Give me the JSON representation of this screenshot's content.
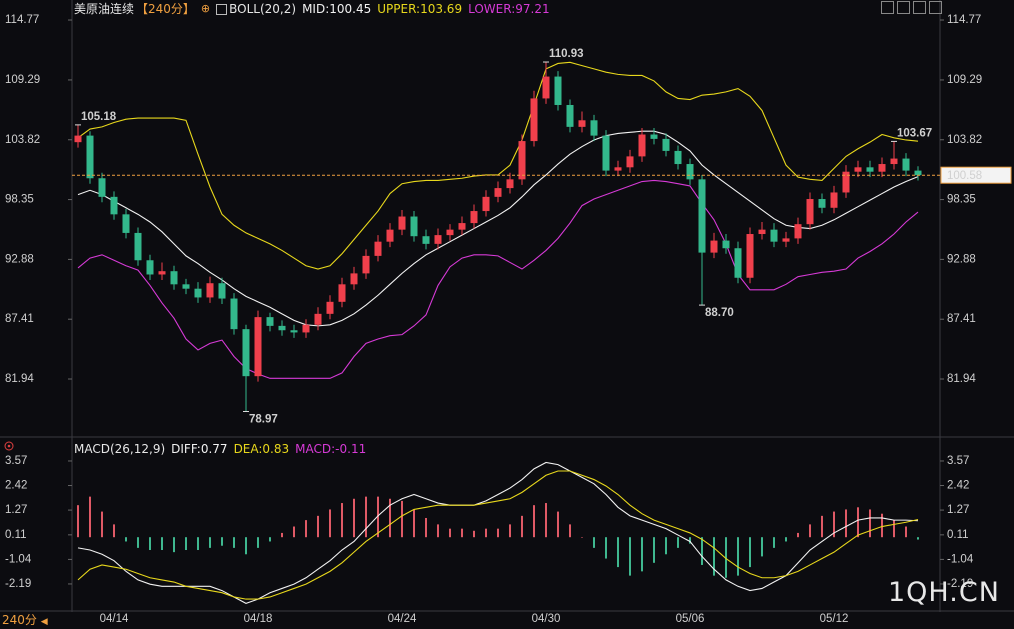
{
  "chart_data": [
    {
      "type": "candlestick",
      "title": "美原油连续",
      "period": "【240分】",
      "indicator": "BOLL(20,2)",
      "categories": [
        null,
        null,
        null,
        "04/14",
        null,
        null,
        null,
        null,
        null,
        null,
        null,
        null,
        null,
        null,
        null,
        "04/18",
        null,
        null,
        null,
        null,
        null,
        null,
        null,
        null,
        null,
        null,
        null,
        "04/24",
        null,
        null,
        null,
        null,
        null,
        null,
        null,
        null,
        null,
        null,
        null,
        "04/30",
        null,
        null,
        null,
        null,
        null,
        null,
        null,
        null,
        null,
        null,
        null,
        "05/06",
        null,
        null,
        null,
        null,
        null,
        null,
        null,
        null,
        null,
        null,
        null,
        "05/12",
        null,
        null,
        null,
        null,
        null,
        null,
        null
      ],
      "open": [
        103.6,
        104.2,
        100.3,
        98.6,
        97.0,
        95.3,
        92.8,
        91.5,
        91.8,
        90.6,
        90.2,
        89.4,
        90.7,
        89.3,
        86.5,
        82.2,
        87.6,
        86.8,
        86.4,
        86.2,
        86.9,
        87.9,
        89.0,
        90.6,
        91.6,
        93.2,
        94.5,
        95.6,
        96.8,
        95.0,
        94.3,
        95.1,
        95.6,
        96.2,
        97.3,
        98.6,
        99.4,
        100.2,
        103.7,
        107.6,
        109.6,
        107.0,
        105.0,
        105.6,
        104.2,
        101.0,
        101.3,
        102.3,
        104.3,
        103.9,
        102.8,
        101.6,
        100.2,
        93.5,
        94.6,
        93.9,
        91.2,
        95.2,
        95.6,
        94.5,
        94.8,
        96.1,
        98.4,
        97.6,
        99.0,
        100.9,
        101.3,
        100.9,
        101.6,
        102.1,
        101.0
      ],
      "high": [
        105.18,
        104.6,
        100.8,
        99.1,
        97.5,
        95.8,
        93.3,
        92.6,
        92.3,
        91.1,
        90.8,
        91.3,
        91.2,
        89.8,
        86.9,
        88.2,
        88.0,
        87.3,
        86.9,
        87.4,
        88.5,
        89.6,
        91.2,
        92.2,
        93.8,
        95.1,
        96.2,
        97.4,
        97.3,
        95.6,
        95.7,
        96.1,
        96.8,
        97.9,
        99.2,
        100.0,
        100.8,
        104.3,
        108.3,
        110.93,
        110.1,
        107.5,
        106.4,
        106.1,
        104.7,
        101.9,
        102.9,
        104.9,
        104.9,
        104.4,
        103.3,
        102.1,
        100.6,
        95.3,
        95.2,
        94.5,
        95.8,
        96.3,
        96.2,
        95.4,
        96.7,
        99.0,
        98.9,
        99.6,
        101.5,
        101.9,
        101.9,
        102.2,
        103.67,
        102.6,
        101.4
      ],
      "low": [
        103.1,
        99.8,
        98.1,
        96.5,
        94.8,
        92.3,
        91.0,
        91.0,
        90.1,
        89.7,
        88.9,
        88.9,
        88.8,
        86.0,
        78.97,
        81.7,
        86.3,
        85.9,
        85.7,
        85.7,
        86.4,
        87.4,
        88.5,
        90.1,
        91.1,
        92.7,
        94.0,
        95.1,
        94.5,
        93.8,
        93.8,
        94.6,
        95.1,
        95.7,
        96.8,
        98.1,
        98.9,
        99.7,
        103.2,
        107.1,
        106.5,
        104.5,
        104.5,
        103.7,
        100.5,
        100.5,
        100.8,
        101.8,
        103.4,
        102.3,
        101.1,
        99.7,
        88.7,
        93.0,
        93.4,
        90.7,
        90.7,
        94.7,
        94.0,
        94.0,
        94.3,
        95.6,
        97.1,
        97.1,
        98.5,
        100.4,
        100.4,
        100.4,
        101.1,
        100.5,
        100.1
      ],
      "close": [
        104.2,
        100.3,
        98.6,
        97.0,
        95.3,
        92.8,
        91.5,
        91.8,
        90.6,
        90.2,
        89.4,
        90.7,
        89.3,
        86.5,
        82.2,
        87.6,
        86.8,
        86.4,
        86.2,
        86.9,
        87.9,
        89.0,
        90.6,
        91.6,
        93.2,
        94.5,
        95.6,
        96.8,
        95.0,
        94.3,
        95.1,
        95.6,
        96.2,
        97.3,
        98.6,
        99.4,
        100.2,
        103.7,
        107.6,
        109.6,
        107.0,
        105.0,
        105.6,
        104.2,
        101.0,
        101.3,
        102.3,
        104.3,
        103.9,
        102.8,
        101.6,
        100.2,
        93.5,
        94.6,
        93.9,
        91.2,
        95.2,
        95.6,
        94.5,
        94.8,
        96.1,
        98.4,
        97.6,
        99.0,
        100.9,
        101.3,
        100.9,
        101.6,
        102.1,
        101.0,
        100.58
      ],
      "up_color": "#f0404c",
      "down_color": "#33b88c",
      "series": [
        {
          "label": "MID:100.45",
          "color": "#f2f2f2",
          "values": [
            98.8,
            99.2,
            98.8,
            98.2,
            97.6,
            97.0,
            96.3,
            95.4,
            94.3,
            93.2,
            92.5,
            91.7,
            91.0,
            90.2,
            89.5,
            89.0,
            88.5,
            87.9,
            87.3,
            86.9,
            86.8,
            86.9,
            87.3,
            87.9,
            88.7,
            89.6,
            90.6,
            91.6,
            92.5,
            93.3,
            93.9,
            94.5,
            95.1,
            95.7,
            96.3,
            96.9,
            97.6,
            98.6,
            99.7,
            100.6,
            101.6,
            102.5,
            103.2,
            103.8,
            104.2,
            104.4,
            104.5,
            104.6,
            104.6,
            104.3,
            103.6,
            102.8,
            101.5,
            100.6,
            99.8,
            99.0,
            98.2,
            97.4,
            96.6,
            96.0,
            95.8,
            95.7,
            96.0,
            96.5,
            97.1,
            97.7,
            98.3,
            98.9,
            99.5,
            100.0,
            100.45
          ]
        },
        {
          "label": "UPPER:103.69",
          "color": "#e8d81c",
          "values": [
            104.0,
            104.8,
            105.0,
            105.4,
            105.7,
            105.8,
            105.8,
            105.8,
            105.8,
            105.6,
            102.5,
            99.5,
            97.0,
            96.0,
            95.3,
            94.8,
            94.3,
            93.7,
            93.0,
            92.3,
            92.0,
            92.3,
            93.4,
            94.7,
            96.0,
            97.3,
            98.9,
            99.8,
            100.0,
            100.1,
            100.1,
            100.2,
            100.3,
            100.5,
            100.6,
            100.6,
            101.5,
            103.8,
            107.0,
            110.3,
            110.8,
            110.9,
            110.6,
            110.3,
            110.0,
            109.8,
            109.7,
            109.7,
            109.2,
            108.2,
            107.6,
            107.5,
            107.9,
            108.0,
            108.2,
            108.5,
            107.8,
            106.5,
            104.0,
            101.5,
            100.4,
            100.2,
            100.1,
            101.2,
            102.3,
            103.0,
            103.6,
            104.3,
            104.0,
            103.8,
            103.69
          ]
        },
        {
          "label": "LOWER:97.21",
          "color": "#d63ad6",
          "values": [
            92.1,
            93.0,
            93.3,
            92.8,
            92.3,
            91.9,
            90.5,
            88.9,
            87.5,
            85.6,
            84.6,
            85.2,
            85.5,
            84.0,
            82.9,
            82.4,
            82.0,
            82.0,
            82.0,
            82.0,
            82.0,
            82.0,
            82.5,
            84.0,
            85.2,
            85.6,
            85.9,
            86.0,
            86.8,
            87.8,
            90.5,
            92.2,
            93.0,
            93.3,
            93.3,
            93.2,
            92.6,
            92.0,
            92.8,
            93.7,
            94.8,
            96.2,
            97.8,
            98.4,
            98.8,
            99.2,
            99.6,
            100.0,
            100.1,
            100.0,
            99.8,
            99.6,
            98.0,
            96.5,
            94.3,
            91.5,
            90.1,
            90.1,
            90.1,
            90.6,
            91.3,
            91.5,
            91.7,
            91.8,
            92.0,
            93.0,
            93.6,
            94.3,
            95.2,
            96.3,
            97.21
          ]
        }
      ],
      "annotations": [
        {
          "text": "105.18",
          "point": "high.0"
        },
        {
          "text": "78.97",
          "point": "low.14"
        },
        {
          "text": "110.93",
          "point": "high.39"
        },
        {
          "text": "88.70",
          "point": "low.52"
        },
        {
          "text": "103.67",
          "point": "high.68"
        }
      ],
      "last_price": 100.58,
      "last_price_color": "#f0a040",
      "ylim": [
        76.82,
        115.87
      ],
      "yticks": [
        114.77,
        109.29,
        103.82,
        98.35,
        92.88,
        87.41,
        81.94
      ]
    },
    {
      "type": "macd",
      "indicator": "MACD(26,12,9)",
      "series": [
        {
          "label": "DIFF:0.77",
          "color": "#f2f2f2",
          "values": [
            -0.5,
            -0.6,
            -0.8,
            -1.1,
            -1.6,
            -2.0,
            -2.2,
            -2.3,
            -2.3,
            -2.3,
            -2.3,
            -2.3,
            -2.5,
            -2.8,
            -3.1,
            -2.9,
            -2.6,
            -2.4,
            -2.2,
            -1.9,
            -1.5,
            -1.1,
            -0.6,
            -0.2,
            0.4,
            1.0,
            1.5,
            1.8,
            2.0,
            1.8,
            1.6,
            1.5,
            1.5,
            1.5,
            1.7,
            2.0,
            2.3,
            2.7,
            3.2,
            3.5,
            3.4,
            3.1,
            2.8,
            2.5,
            2.0,
            1.4,
            1.0,
            0.8,
            0.6,
            0.4,
            0.1,
            -0.2,
            -0.9,
            -1.5,
            -2.0,
            -2.3,
            -2.5,
            -2.4,
            -2.1,
            -1.8,
            -1.2,
            -0.6,
            -0.2,
            0.2,
            0.5,
            0.8,
            0.9,
            0.9,
            0.8,
            0.8,
            0.77
          ]
        },
        {
          "label": "DEA:0.83",
          "color": "#e8d81c",
          "values": [
            -2.0,
            -1.5,
            -1.3,
            -1.4,
            -1.5,
            -1.7,
            -1.9,
            -2.0,
            -2.1,
            -2.3,
            -2.4,
            -2.5,
            -2.6,
            -2.8,
            -2.9,
            -2.9,
            -2.8,
            -2.6,
            -2.4,
            -2.2,
            -1.9,
            -1.6,
            -1.2,
            -0.7,
            -0.2,
            0.2,
            0.6,
            1.0,
            1.3,
            1.4,
            1.5,
            1.5,
            1.5,
            1.5,
            1.6,
            1.7,
            1.8,
            2.1,
            2.5,
            2.9,
            3.1,
            3.1,
            2.9,
            2.7,
            2.4,
            2.0,
            1.5,
            1.1,
            0.8,
            0.6,
            0.4,
            0.2,
            -0.1,
            -0.5,
            -1.0,
            -1.4,
            -1.7,
            -1.9,
            -1.9,
            -1.8,
            -1.6,
            -1.3,
            -1.0,
            -0.7,
            -0.3,
            0.1,
            0.3,
            0.5,
            0.6,
            0.7,
            0.83
          ]
        }
      ],
      "histogram": {
        "label": "MACD:-0.11",
        "color": "#d63ad6",
        "up_color": "#e05a66",
        "down_color": "#3fb88f",
        "values": [
          1.5,
          1.9,
          1.2,
          0.6,
          -0.2,
          -0.5,
          -0.6,
          -0.6,
          -0.7,
          -0.6,
          -0.6,
          -0.5,
          -0.4,
          -0.5,
          -0.8,
          -0.5,
          -0.2,
          0.2,
          0.5,
          0.8,
          1.0,
          1.3,
          1.6,
          1.8,
          1.9,
          1.9,
          1.8,
          1.7,
          1.3,
          0.9,
          0.6,
          0.4,
          0.4,
          0.3,
          0.4,
          0.4,
          0.6,
          1.0,
          1.5,
          1.6,
          1.2,
          0.6,
          0.0,
          -0.5,
          -1.0,
          -1.4,
          -1.8,
          -1.6,
          -1.2,
          -0.8,
          -0.5,
          -0.3,
          -1.3,
          -1.8,
          -1.9,
          -1.8,
          -1.4,
          -0.9,
          -0.5,
          -0.2,
          0.2,
          0.6,
          1.0,
          1.2,
          1.3,
          1.4,
          1.3,
          1.1,
          0.8,
          0.5,
          -0.11
        ]
      },
      "ylim": [
        -3.41,
        3.85
      ],
      "yticks": [
        3.57,
        2.42,
        1.27,
        0.11,
        -1.04,
        -2.19
      ]
    }
  ],
  "ui": {
    "tab": "240分",
    "watermark": "1QH.CN"
  }
}
